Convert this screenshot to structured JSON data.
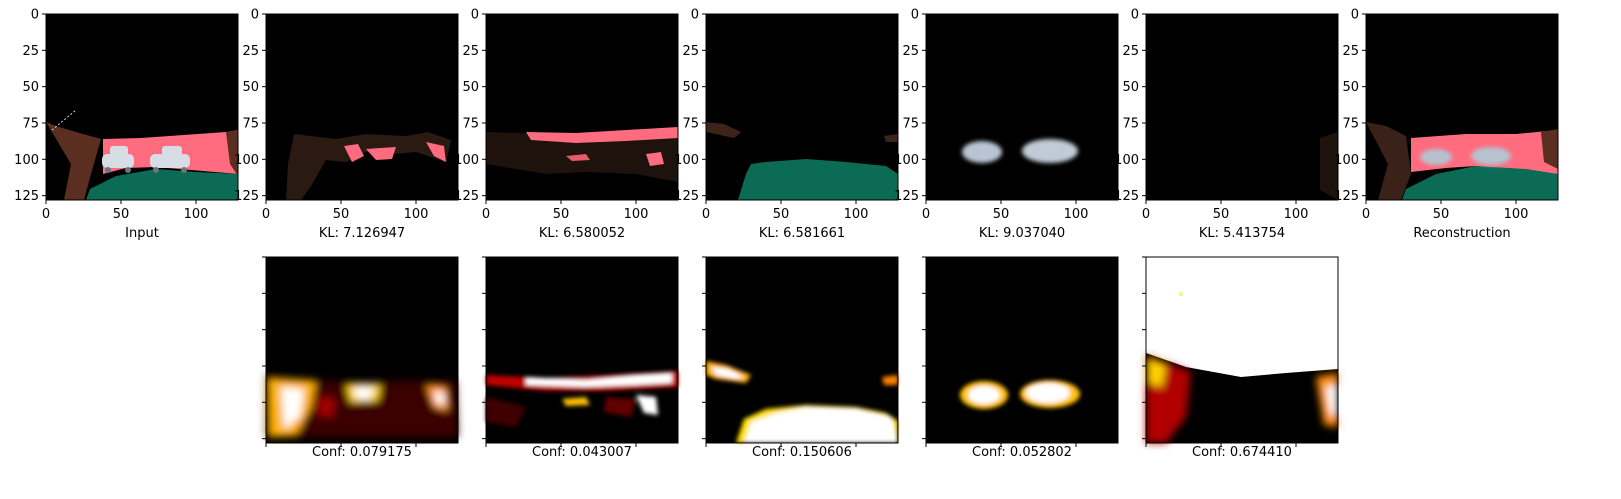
{
  "figure": {
    "top_row": [
      {
        "caption": "Input",
        "kind": "input"
      },
      {
        "caption": "KL: 7.126947",
        "kind": "slot-road"
      },
      {
        "caption": "KL: 6.580052",
        "kind": "slot-sky-band"
      },
      {
        "caption": "KL: 6.581661",
        "kind": "slot-ground"
      },
      {
        "caption": "KL: 9.037040",
        "kind": "slot-cars"
      },
      {
        "caption": "KL: 5.413754",
        "kind": "slot-empty"
      },
      {
        "caption": "Reconstruction",
        "kind": "reconstruction"
      }
    ],
    "bottom_row": [
      {
        "caption": "Conf: 0.079175",
        "kind": "heat-road"
      },
      {
        "caption": "Conf: 0.043007",
        "kind": "heat-band"
      },
      {
        "caption": "Conf: 0.150606",
        "kind": "heat-ground"
      },
      {
        "caption": "Conf: 0.052802",
        "kind": "heat-cars"
      },
      {
        "caption": "Conf: 0.674410",
        "kind": "heat-sky"
      }
    ],
    "x_ticks": [
      "0",
      "50",
      "100"
    ],
    "y_ticks": [
      "0",
      "25",
      "50",
      "75",
      "100",
      "125"
    ],
    "image_extent": [
      0,
      128
    ],
    "colors": {
      "background": "#000000",
      "wall_pink": "#ff6b7f",
      "ground_green": "#0b6b54",
      "wall_brown": "#5a2e20",
      "car_silver": "#c9d4de",
      "heat_low": "#000000",
      "heat_mid": "#e4190a",
      "heat_high": "#ffffff"
    }
  }
}
